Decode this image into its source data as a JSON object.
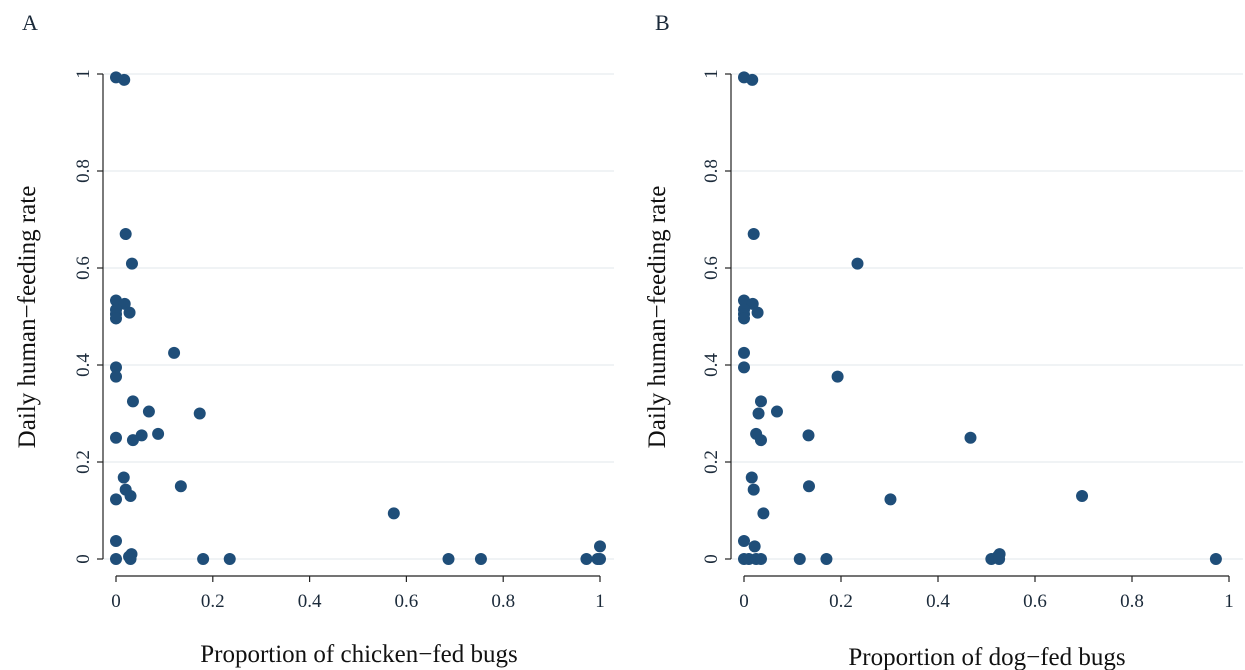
{
  "chart_data": [
    {
      "type": "scatter",
      "panel_label": "A",
      "xlabel": "Proportion of chicken−fed bugs",
      "ylabel": "Daily human−feeding rate",
      "xlim": [
        0,
        1
      ],
      "ylim": [
        0,
        1
      ],
      "xticks": [
        "0",
        "0.2",
        "0.4",
        "0.6",
        "0.8",
        "1"
      ],
      "yticks": [
        "0",
        "0.2",
        "0.4",
        "0.6",
        "0.8",
        "1"
      ],
      "grid": true,
      "marker_color": "#1f4e79",
      "points": [
        {
          "x": 0.0,
          "y": 0.993
        },
        {
          "x": 0.017,
          "y": 0.988
        },
        {
          "x": 0.02,
          "y": 0.67
        },
        {
          "x": 0.033,
          "y": 0.609
        },
        {
          "x": 0.0,
          "y": 0.533
        },
        {
          "x": 0.018,
          "y": 0.526
        },
        {
          "x": 0.0,
          "y": 0.514
        },
        {
          "x": 0.0,
          "y": 0.505
        },
        {
          "x": 0.0,
          "y": 0.496
        },
        {
          "x": 0.028,
          "y": 0.508
        },
        {
          "x": 0.12,
          "y": 0.425
        },
        {
          "x": 0.0,
          "y": 0.395
        },
        {
          "x": 0.0,
          "y": 0.376
        },
        {
          "x": 0.035,
          "y": 0.325
        },
        {
          "x": 0.068,
          "y": 0.304
        },
        {
          "x": 0.173,
          "y": 0.3
        },
        {
          "x": 0.087,
          "y": 0.258
        },
        {
          "x": 0.053,
          "y": 0.255
        },
        {
          "x": 0.0,
          "y": 0.25
        },
        {
          "x": 0.035,
          "y": 0.245
        },
        {
          "x": 0.016,
          "y": 0.168
        },
        {
          "x": 0.134,
          "y": 0.15
        },
        {
          "x": 0.02,
          "y": 0.143
        },
        {
          "x": 0.03,
          "y": 0.13
        },
        {
          "x": 0.0,
          "y": 0.123
        },
        {
          "x": 0.574,
          "y": 0.094
        },
        {
          "x": 0.0,
          "y": 0.037
        },
        {
          "x": 1.0,
          "y": 0.026
        },
        {
          "x": 0.032,
          "y": 0.01
        },
        {
          "x": 0.027,
          "y": 0.005
        },
        {
          "x": 0.0,
          "y": 0.0
        },
        {
          "x": 0.03,
          "y": 0.0
        },
        {
          "x": 0.18,
          "y": 0.0
        },
        {
          "x": 0.235,
          "y": 0.0
        },
        {
          "x": 0.687,
          "y": 0.0
        },
        {
          "x": 0.754,
          "y": 0.0
        },
        {
          "x": 0.972,
          "y": 0.0
        },
        {
          "x": 0.995,
          "y": 0.0
        },
        {
          "x": 1.0,
          "y": 0.0
        }
      ]
    },
    {
      "type": "scatter",
      "panel_label": "B",
      "xlabel": "Proportion of dog−fed bugs",
      "ylabel": "Daily human−feeding rate",
      "xlim": [
        0,
        1
      ],
      "ylim": [
        0,
        1
      ],
      "xticks": [
        "0",
        "0.2",
        "0.4",
        "0.6",
        "0.8",
        "1"
      ],
      "yticks": [
        "0",
        "0.2",
        "0.4",
        "0.6",
        "0.8",
        "1"
      ],
      "grid": true,
      "marker_color": "#1f4e79",
      "points": [
        {
          "x": 0.0,
          "y": 0.993
        },
        {
          "x": 0.017,
          "y": 0.988
        },
        {
          "x": 0.02,
          "y": 0.67
        },
        {
          "x": 0.234,
          "y": 0.609
        },
        {
          "x": 0.0,
          "y": 0.533
        },
        {
          "x": 0.018,
          "y": 0.526
        },
        {
          "x": 0.0,
          "y": 0.514
        },
        {
          "x": 0.0,
          "y": 0.505
        },
        {
          "x": 0.0,
          "y": 0.496
        },
        {
          "x": 0.028,
          "y": 0.508
        },
        {
          "x": 0.0,
          "y": 0.425
        },
        {
          "x": 0.0,
          "y": 0.395
        },
        {
          "x": 0.193,
          "y": 0.376
        },
        {
          "x": 0.035,
          "y": 0.325
        },
        {
          "x": 0.068,
          "y": 0.304
        },
        {
          "x": 0.03,
          "y": 0.3
        },
        {
          "x": 0.025,
          "y": 0.258
        },
        {
          "x": 0.133,
          "y": 0.255
        },
        {
          "x": 0.467,
          "y": 0.25
        },
        {
          "x": 0.035,
          "y": 0.245
        },
        {
          "x": 0.016,
          "y": 0.168
        },
        {
          "x": 0.134,
          "y": 0.15
        },
        {
          "x": 0.02,
          "y": 0.143
        },
        {
          "x": 0.697,
          "y": 0.13
        },
        {
          "x": 0.302,
          "y": 0.123
        },
        {
          "x": 0.04,
          "y": 0.094
        },
        {
          "x": 0.0,
          "y": 0.037
        },
        {
          "x": 0.022,
          "y": 0.026
        },
        {
          "x": 0.527,
          "y": 0.01
        },
        {
          "x": 0.523,
          "y": 0.005
        },
        {
          "x": 0.0,
          "y": 0.0
        },
        {
          "x": 0.01,
          "y": 0.0
        },
        {
          "x": 0.025,
          "y": 0.0
        },
        {
          "x": 0.035,
          "y": 0.0
        },
        {
          "x": 0.115,
          "y": 0.0
        },
        {
          "x": 0.17,
          "y": 0.0
        },
        {
          "x": 0.51,
          "y": 0.0
        },
        {
          "x": 0.526,
          "y": 0.0
        },
        {
          "x": 0.973,
          "y": 0.0
        }
      ]
    }
  ]
}
